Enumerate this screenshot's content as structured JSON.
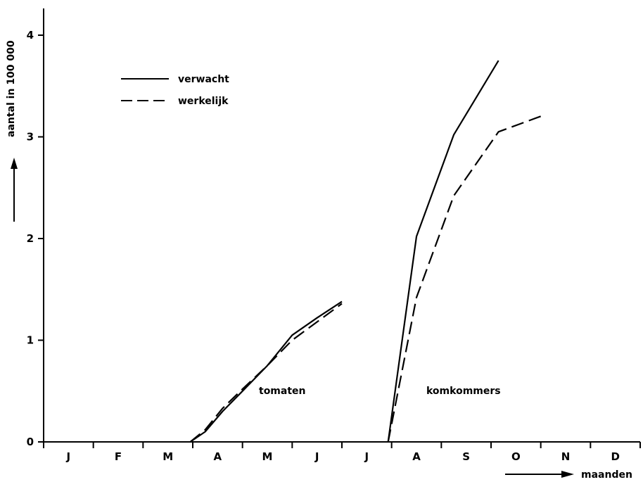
{
  "chart_data": {
    "type": "line",
    "title": "",
    "xlabel": "maanden",
    "ylabel": "aantal in 100 000",
    "categories": [
      "J",
      "F",
      "M",
      "A",
      "M",
      "J",
      "J",
      "A",
      "S",
      "O",
      "N",
      "D"
    ],
    "xlim": [
      0,
      12
    ],
    "ylim": [
      0,
      4
    ],
    "yticks": [
      0,
      1,
      2,
      3,
      4
    ],
    "grid": false,
    "legend_position": "top-left",
    "legend": [
      {
        "label": "verwacht",
        "style": "solid"
      },
      {
        "label": "werkelijk",
        "style": "dashed"
      }
    ],
    "annotations": [
      "tomaten",
      "komkommers"
    ],
    "series": [
      {
        "name": "verwacht",
        "group": "tomaten",
        "style": "solid",
        "x": [
          2.95,
          3.25,
          3.6,
          4.0,
          4.5,
          5.0,
          5.5,
          6.0
        ],
        "y": [
          0,
          0.1,
          0.3,
          0.5,
          0.75,
          1.05,
          1.22,
          1.38
        ]
      },
      {
        "name": "werkelijk",
        "group": "tomaten",
        "style": "dashed",
        "x": [
          2.95,
          3.25,
          3.6,
          4.0,
          4.5,
          5.0,
          5.5,
          6.0
        ],
        "y": [
          0,
          0.12,
          0.33,
          0.52,
          0.75,
          1.0,
          1.18,
          1.36
        ]
      },
      {
        "name": "verwacht",
        "group": "komkommers",
        "style": "solid",
        "x": [
          6.93,
          7.5,
          8.25,
          9.15
        ],
        "y": [
          0,
          2.02,
          3.02,
          3.75
        ]
      },
      {
        "name": "werkelijk",
        "group": "komkommers",
        "style": "dashed",
        "x": [
          6.93,
          7.5,
          8.25,
          9.15,
          10.1
        ],
        "y": [
          0,
          1.42,
          2.42,
          3.05,
          3.22
        ]
      }
    ],
    "colors": {
      "line": "#000000",
      "background": "#ffffff"
    }
  }
}
